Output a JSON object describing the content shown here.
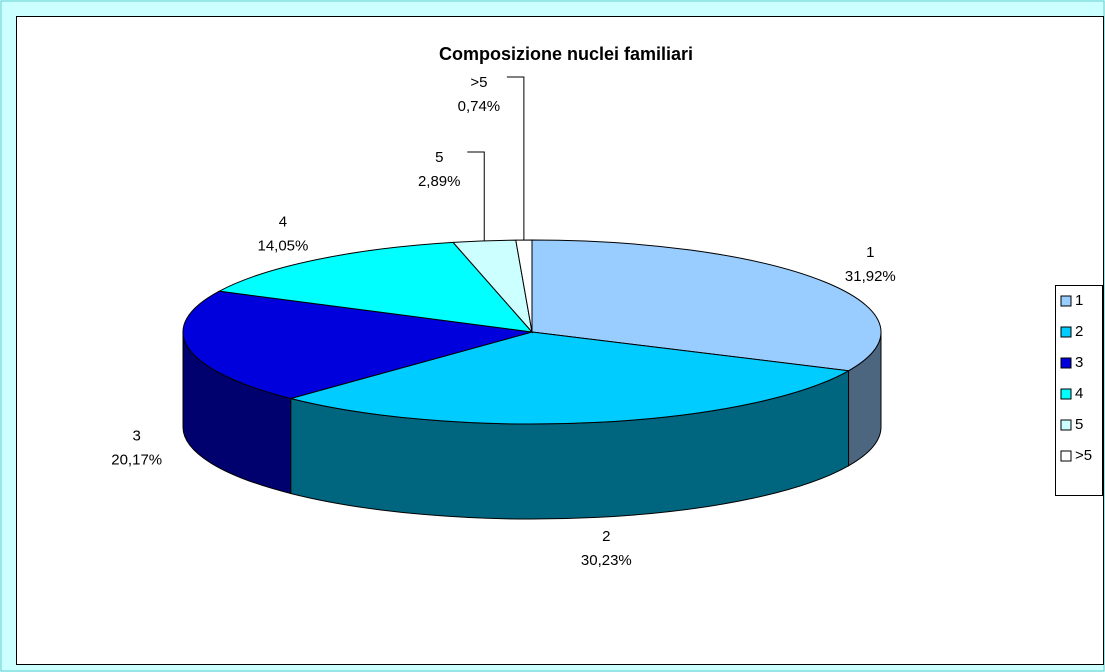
{
  "chart_data": {
    "type": "pie",
    "title": "Composizione nuclei familiari",
    "categories": [
      "1",
      "2",
      "3",
      "4",
      "5",
      ">5"
    ],
    "values": [
      31.92,
      30.23,
      20.17,
      14.05,
      2.89,
      0.74
    ],
    "value_labels": [
      "31,92%",
      "30,23%",
      "20,17%",
      "14,05%",
      "2,89%",
      "0,74%"
    ],
    "colors": [
      "#99ccff",
      "#00ccff",
      "#0000dd",
      "#00ffff",
      "#ccffff",
      "#ffffff"
    ],
    "legend": "right"
  }
}
